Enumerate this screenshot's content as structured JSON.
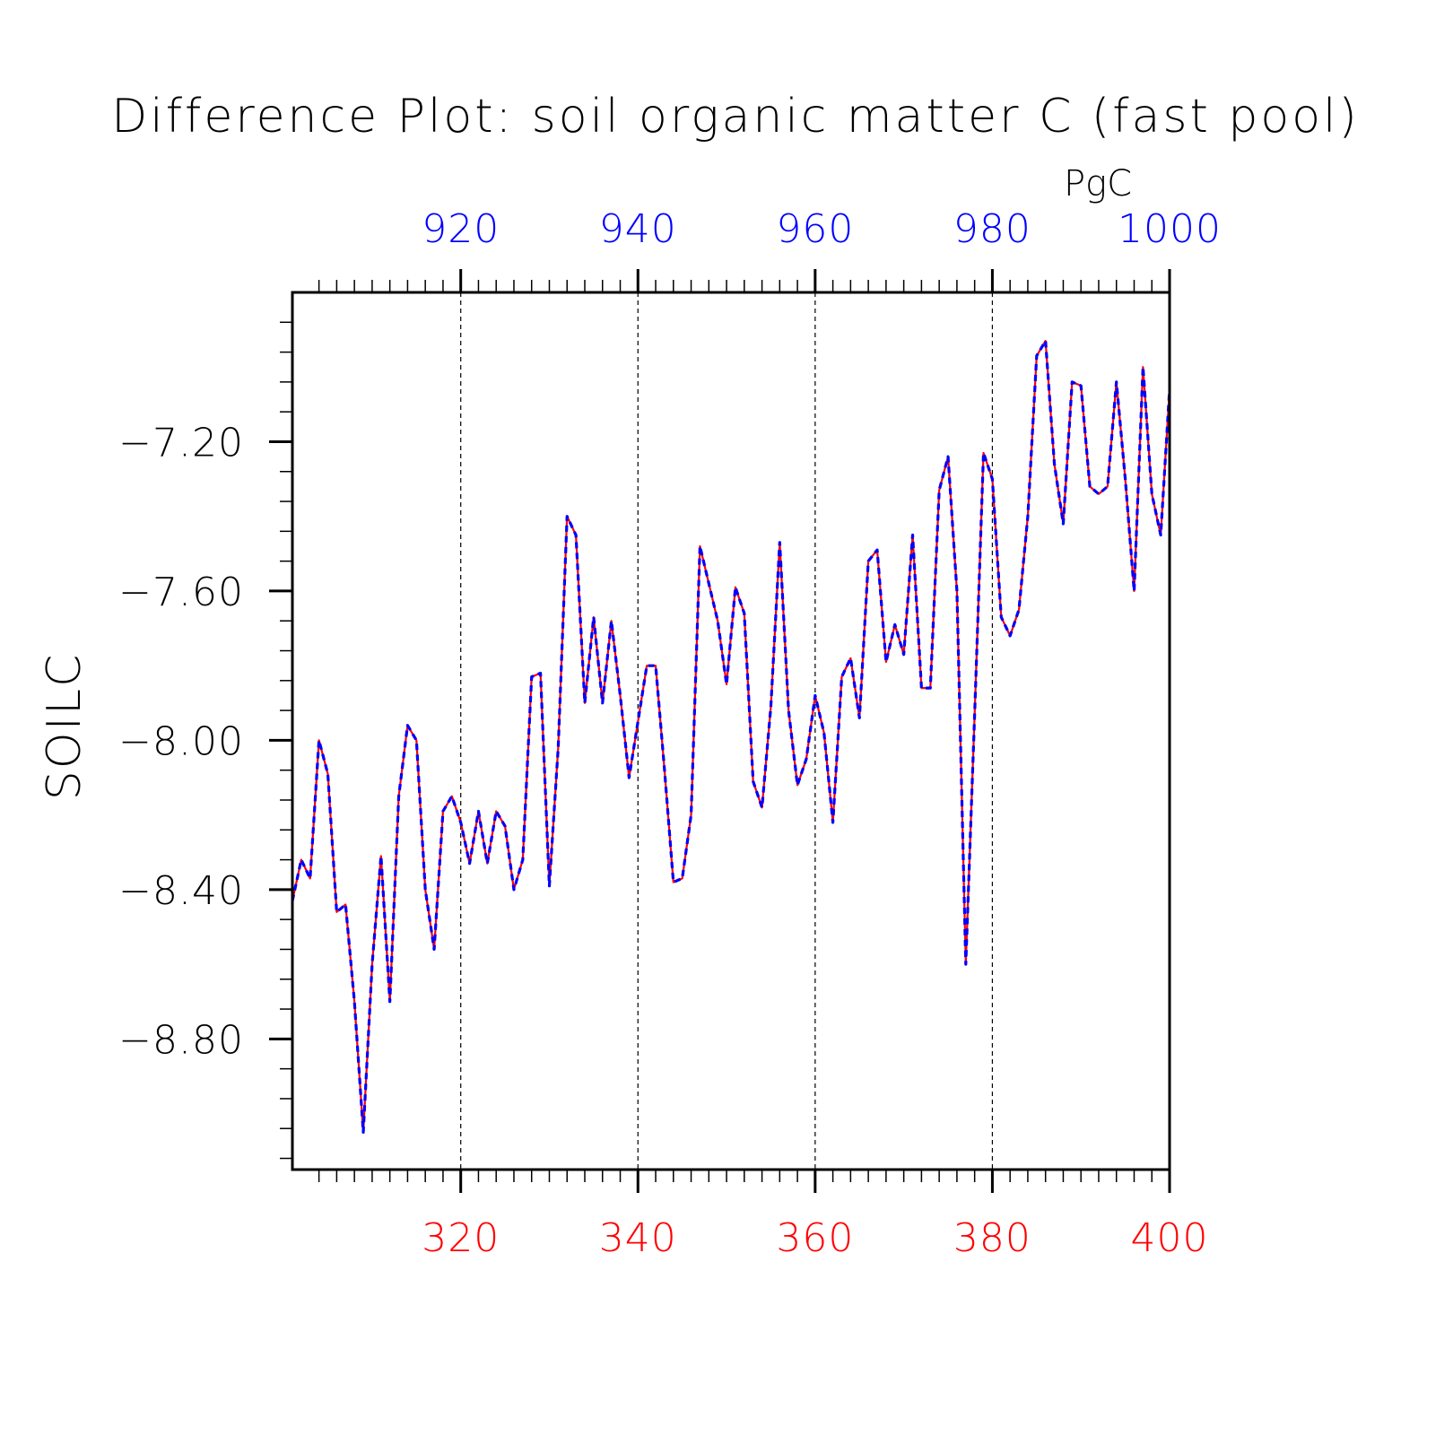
{
  "chart_data": {
    "type": "line",
    "title": "Difference Plot: soil organic matter C (fast pool)",
    "units": "PgC",
    "ylabel": "SOILC",
    "xlabel": "",
    "bottom_axis": {
      "range": [
        301,
        400
      ],
      "ticks": [
        320,
        340,
        360,
        380,
        400
      ],
      "tick_labels": [
        "320",
        "340",
        "360",
        "380",
        "400"
      ],
      "color": "#ff0000"
    },
    "top_axis": {
      "range": [
        901,
        1000
      ],
      "ticks": [
        920,
        940,
        960,
        980,
        1000
      ],
      "tick_labels": [
        "920",
        "940",
        "960",
        "980",
        "1000"
      ],
      "color": "#0000ff"
    },
    "y_axis": {
      "range": [
        -9.15,
        -6.8
      ],
      "ticks": [
        -8.8,
        -8.4,
        -8.0,
        -7.6,
        -7.2
      ],
      "tick_labels": [
        "−8.80",
        "−8.40",
        "−8.00",
        "−7.60",
        "−7.20"
      ]
    },
    "grid": "vertical dashed at major top/bottom ticks",
    "x": [
      301,
      302,
      303,
      304,
      305,
      306,
      307,
      308,
      309,
      310,
      311,
      312,
      313,
      314,
      315,
      316,
      317,
      318,
      319,
      320,
      321,
      322,
      323,
      324,
      325,
      326,
      327,
      328,
      329,
      330,
      331,
      332,
      333,
      334,
      335,
      336,
      337,
      338,
      339,
      340,
      341,
      342,
      343,
      344,
      345,
      346,
      347,
      348,
      349,
      350,
      351,
      352,
      353,
      354,
      355,
      356,
      357,
      358,
      359,
      360,
      361,
      362,
      363,
      364,
      365,
      366,
      367,
      368,
      369,
      370,
      371,
      372,
      373,
      374,
      375,
      376,
      377,
      378,
      379,
      380,
      381,
      382,
      383,
      384,
      385,
      386,
      387,
      388,
      389,
      390,
      391,
      392,
      393,
      394,
      395,
      396,
      397,
      398,
      399,
      400
    ],
    "series": [
      {
        "name": "",
        "color": "#ff0000",
        "style": "solid",
        "values": [
          -8.43,
          -8.32,
          -8.37,
          -8.0,
          -8.09,
          -8.46,
          -8.44,
          -8.7,
          -9.05,
          -8.6,
          -8.31,
          -8.7,
          -8.15,
          -7.96,
          -8.0,
          -8.4,
          -8.56,
          -8.19,
          -8.15,
          -8.22,
          -8.33,
          -8.19,
          -8.33,
          -8.19,
          -8.23,
          -8.4,
          -8.32,
          -7.83,
          -7.82,
          -8.39,
          -8.02,
          -7.4,
          -7.45,
          -7.9,
          -7.67,
          -7.9,
          -7.68,
          -7.88,
          -8.1,
          -7.95,
          -7.8,
          -7.8,
          -8.08,
          -8.38,
          -8.37,
          -8.2,
          -7.48,
          -7.58,
          -7.68,
          -7.85,
          -7.59,
          -7.66,
          -8.11,
          -8.18,
          -7.91,
          -7.47,
          -7.92,
          -8.12,
          -8.05,
          -7.88,
          -7.98,
          -8.22,
          -7.83,
          -7.78,
          -7.94,
          -7.52,
          -7.49,
          -7.79,
          -7.69,
          -7.77,
          -7.45,
          -7.86,
          -7.86,
          -7.33,
          -7.24,
          -7.6,
          -8.6,
          -7.93,
          -7.23,
          -7.3,
          -7.67,
          -7.72,
          -7.65,
          -7.4,
          -6.97,
          -6.93,
          -7.26,
          -7.42,
          -7.04,
          -7.05,
          -7.32,
          -7.34,
          -7.32,
          -7.04,
          -7.3,
          -7.6,
          -7.0,
          -7.34,
          -7.45,
          -7.06
        ]
      },
      {
        "name": "",
        "color": "#0000ff",
        "style": "dashed",
        "values": [
          -8.43,
          -8.32,
          -8.37,
          -8.0,
          -8.09,
          -8.46,
          -8.44,
          -8.7,
          -9.05,
          -8.6,
          -8.31,
          -8.7,
          -8.15,
          -7.96,
          -8.0,
          -8.4,
          -8.56,
          -8.19,
          -8.15,
          -8.22,
          -8.33,
          -8.19,
          -8.33,
          -8.19,
          -8.23,
          -8.4,
          -8.32,
          -7.83,
          -7.82,
          -8.39,
          -8.02,
          -7.4,
          -7.45,
          -7.9,
          -7.67,
          -7.9,
          -7.68,
          -7.88,
          -8.1,
          -7.95,
          -7.8,
          -7.8,
          -8.08,
          -8.38,
          -8.37,
          -8.2,
          -7.48,
          -7.58,
          -7.68,
          -7.85,
          -7.59,
          -7.66,
          -8.11,
          -8.18,
          -7.91,
          -7.47,
          -7.92,
          -8.12,
          -8.05,
          -7.88,
          -7.98,
          -8.22,
          -7.83,
          -7.78,
          -7.94,
          -7.52,
          -7.49,
          -7.79,
          -7.69,
          -7.77,
          -7.45,
          -7.86,
          -7.86,
          -7.33,
          -7.24,
          -7.6,
          -8.6,
          -7.93,
          -7.23,
          -7.3,
          -7.67,
          -7.72,
          -7.65,
          -7.4,
          -6.97,
          -6.93,
          -7.26,
          -7.42,
          -7.04,
          -7.05,
          -7.32,
          -7.34,
          -7.32,
          -7.04,
          -7.3,
          -7.6,
          -7.0,
          -7.34,
          -7.45,
          -7.06
        ]
      }
    ]
  }
}
